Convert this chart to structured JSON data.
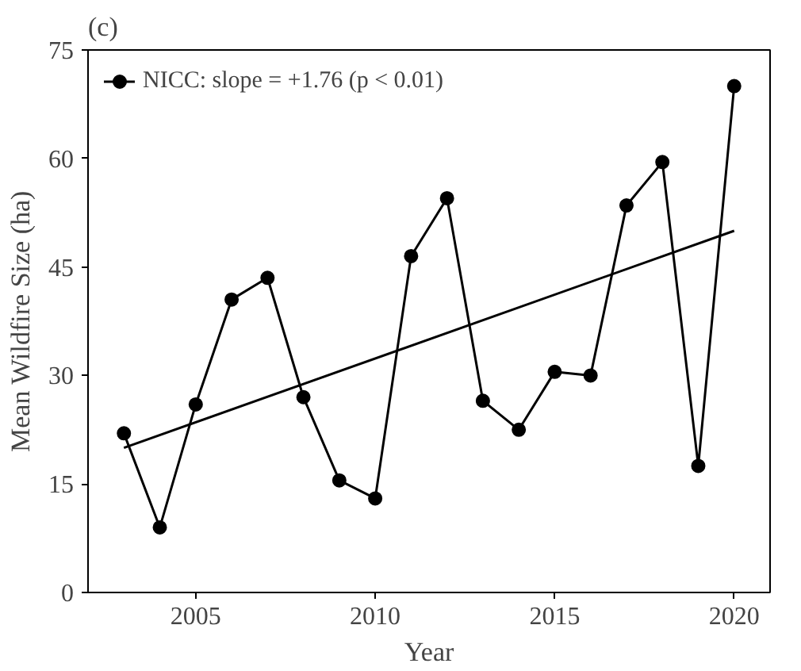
{
  "chart_data": {
    "type": "line",
    "title": "(c)",
    "xlabel": "Year",
    "ylabel": "Mean Wildfire Size (ha)",
    "x": [
      2003,
      2004,
      2005,
      2006,
      2007,
      2008,
      2009,
      2010,
      2011,
      2012,
      2013,
      2014,
      2015,
      2016,
      2017,
      2018,
      2019,
      2020
    ],
    "series": [
      {
        "name": "NICC: slope = +1.76 (p < 0.01)",
        "color": "#000000",
        "values": [
          22,
          9,
          26,
          40.5,
          43.5,
          27,
          15.5,
          13,
          46.5,
          54.5,
          26.5,
          22.5,
          30.5,
          30,
          53.5,
          59.5,
          17.5,
          70
        ]
      },
      {
        "type": "line",
        "color": "#000000",
        "marker": "none",
        "x": [
          2003,
          2020
        ],
        "values": [
          20,
          50
        ]
      }
    ],
    "xlim": [
      2002,
      2021
    ],
    "ylim": [
      0,
      75
    ],
    "xticks": [
      2005,
      2010,
      2015,
      2020
    ],
    "yticks": [
      0,
      15,
      30,
      45,
      60,
      75
    ],
    "marker": "circle",
    "line_style": "solid",
    "grid": false,
    "legend": "top left"
  }
}
